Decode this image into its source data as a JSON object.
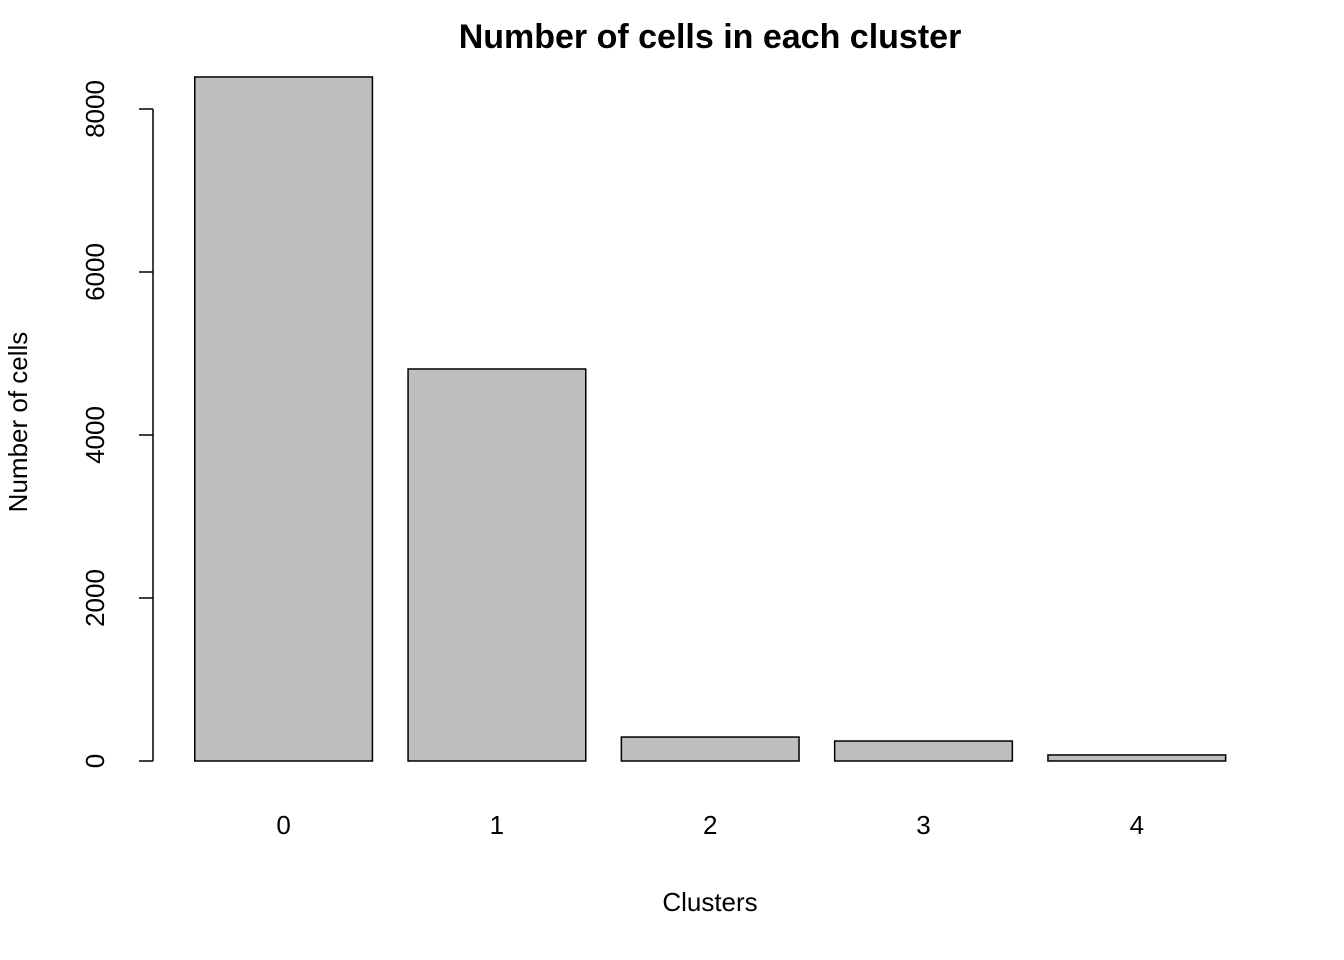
{
  "chart_data": {
    "type": "bar",
    "title": "Number of cells in each cluster",
    "x_label": "Clusters",
    "y_label": "Number of cells",
    "categories": [
      "0",
      "1",
      "2",
      "3",
      "4"
    ],
    "values": [
      8393,
      4810,
      294,
      245,
      74
    ],
    "color": "#bebebe",
    "ylim": [
      0,
      8400
    ],
    "yticks": [
      0,
      2000,
      4000,
      6000,
      8000
    ],
    "grid": false
  }
}
